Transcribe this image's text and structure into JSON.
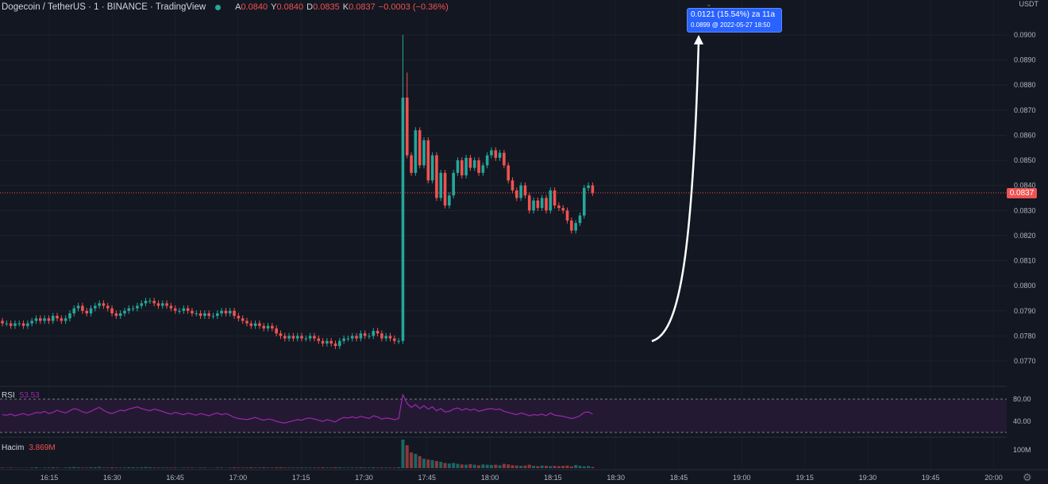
{
  "header": {
    "symbol": "Dogecoin / TetherUS · 1 · BINANCE · TradingView",
    "ohlc": [
      {
        "k": "A",
        "v": "0.0840"
      },
      {
        "k": "Y",
        "v": "0.0840"
      },
      {
        "k": "D",
        "v": "0.0835"
      },
      {
        "k": "K",
        "v": "0.0837"
      }
    ],
    "change": "−0.0003 (−0.36%)"
  },
  "price_axis": {
    "unit": "USDT",
    "current_price": "0.0837"
  },
  "measure_tooltip": {
    "line1": "0.0121 (15.54%) za 11a",
    "line2": "0.0899 @ 2022-05-27  18:50"
  },
  "rsi": {
    "label": "RSI",
    "value": "53.53",
    "levels": [
      "80.00",
      "40.00"
    ]
  },
  "volume": {
    "label": "Hacim",
    "value": "3.869M",
    "axis_label": "100M"
  },
  "colors": {
    "background": "#131722",
    "up": "#26a69a",
    "down": "#ef5350",
    "rsi": "#9c27b0",
    "rsi_band": "#2a1a3d"
  },
  "chart_data": {
    "type": "candlestick",
    "yticks": [
      "0.0770",
      "0.0780",
      "0.0790",
      "0.0800",
      "0.0810",
      "0.0820",
      "0.0830",
      "0.0840",
      "0.0850",
      "0.0860",
      "0.0870",
      "0.0880",
      "0.0890",
      "0.0900"
    ],
    "ylim": [
      0.0765,
      0.0903
    ],
    "xticks": [
      "16:15",
      "16:30",
      "16:45",
      "17:00",
      "17:15",
      "17:30",
      "17:45",
      "18:00",
      "18:15",
      "18:30",
      "18:45",
      "19:00",
      "19:15",
      "19:30",
      "19:45",
      "20:00"
    ],
    "series": [
      {
        "name": "candles",
        "values": [
          [
            0.0786,
            0.0785
          ],
          [
            0.0785,
            0.0785
          ],
          [
            0.0785,
            0.0784
          ],
          [
            0.0784,
            0.0785
          ],
          [
            0.0785,
            0.0785
          ],
          [
            0.0785,
            0.0784
          ],
          [
            0.0784,
            0.0785
          ],
          [
            0.0785,
            0.0786
          ],
          [
            0.0786,
            0.0787
          ],
          [
            0.0787,
            0.0786
          ],
          [
            0.0786,
            0.0787
          ],
          [
            0.0787,
            0.0786
          ],
          [
            0.0786,
            0.0788
          ],
          [
            0.0788,
            0.0787
          ],
          [
            0.0787,
            0.0786
          ],
          [
            0.0786,
            0.0787
          ],
          [
            0.0787,
            0.0789
          ],
          [
            0.0789,
            0.0791
          ],
          [
            0.0791,
            0.0792
          ],
          [
            0.0792,
            0.079
          ],
          [
            0.079,
            0.0789
          ],
          [
            0.0789,
            0.0791
          ],
          [
            0.0791,
            0.0792
          ],
          [
            0.0792,
            0.0793
          ],
          [
            0.0793,
            0.0792
          ],
          [
            0.0792,
            0.0791
          ],
          [
            0.0791,
            0.0789
          ],
          [
            0.0789,
            0.0788
          ],
          [
            0.0788,
            0.0789
          ],
          [
            0.0789,
            0.079
          ],
          [
            0.079,
            0.0791
          ],
          [
            0.0791,
            0.0791
          ],
          [
            0.0791,
            0.0792
          ],
          [
            0.0792,
            0.0793
          ],
          [
            0.0793,
            0.0794
          ],
          [
            0.0794,
            0.0794
          ],
          [
            0.0794,
            0.0793
          ],
          [
            0.0793,
            0.0792
          ],
          [
            0.0792,
            0.0793
          ],
          [
            0.0793,
            0.0792
          ],
          [
            0.0792,
            0.0791
          ],
          [
            0.0791,
            0.079
          ],
          [
            0.079,
            0.079
          ],
          [
            0.079,
            0.0791
          ],
          [
            0.0791,
            0.079
          ],
          [
            0.079,
            0.0789
          ],
          [
            0.0789,
            0.0789
          ],
          [
            0.0789,
            0.0788
          ],
          [
            0.0788,
            0.0789
          ],
          [
            0.0789,
            0.0788
          ],
          [
            0.0788,
            0.0788
          ],
          [
            0.0788,
            0.0789
          ],
          [
            0.0789,
            0.079
          ],
          [
            0.079,
            0.0789
          ],
          [
            0.0789,
            0.079
          ],
          [
            0.079,
            0.0788
          ],
          [
            0.0788,
            0.0787
          ],
          [
            0.0787,
            0.0786
          ],
          [
            0.0786,
            0.0785
          ],
          [
            0.0785,
            0.0784
          ],
          [
            0.0784,
            0.0785
          ],
          [
            0.0785,
            0.0784
          ],
          [
            0.0784,
            0.0783
          ],
          [
            0.0783,
            0.0784
          ],
          [
            0.0784,
            0.0783
          ],
          [
            0.0783,
            0.0781
          ],
          [
            0.0781,
            0.078
          ],
          [
            0.078,
            0.0779
          ],
          [
            0.0779,
            0.078
          ],
          [
            0.078,
            0.0779
          ],
          [
            0.0779,
            0.078
          ],
          [
            0.078,
            0.0779
          ],
          [
            0.0779,
            0.0779
          ],
          [
            0.0779,
            0.078
          ],
          [
            0.078,
            0.0779
          ],
          [
            0.0779,
            0.0778
          ],
          [
            0.0778,
            0.0777
          ],
          [
            0.0777,
            0.0778
          ],
          [
            0.0778,
            0.0777
          ],
          [
            0.0777,
            0.0776
          ],
          [
            0.0776,
            0.0778
          ],
          [
            0.0778,
            0.0779
          ],
          [
            0.0779,
            0.0779
          ],
          [
            0.0779,
            0.078
          ],
          [
            0.078,
            0.0779
          ],
          [
            0.0779,
            0.0781
          ],
          [
            0.0781,
            0.078
          ],
          [
            0.078,
            0.078
          ],
          [
            0.078,
            0.0782
          ],
          [
            0.0782,
            0.0781
          ],
          [
            0.0781,
            0.0779
          ],
          [
            0.0779,
            0.078
          ],
          [
            0.078,
            0.0779
          ],
          [
            0.0779,
            0.0778
          ],
          [
            0.0778,
            0.0778
          ],
          [
            0.0778,
            0.0875
          ],
          [
            0.0875,
            0.0852
          ],
          [
            0.0852,
            0.0845
          ],
          [
            0.0845,
            0.0862
          ],
          [
            0.0862,
            0.0848
          ],
          [
            0.0848,
            0.0858
          ],
          [
            0.0858,
            0.0842
          ],
          [
            0.0842,
            0.0852
          ],
          [
            0.0852,
            0.0835
          ],
          [
            0.0835,
            0.0845
          ],
          [
            0.0845,
            0.0832
          ],
          [
            0.0832,
            0.0836
          ],
          [
            0.0836,
            0.0845
          ],
          [
            0.0845,
            0.085
          ],
          [
            0.085,
            0.0844
          ],
          [
            0.0844,
            0.0851
          ],
          [
            0.0851,
            0.0847
          ],
          [
            0.0847,
            0.085
          ],
          [
            0.085,
            0.0845
          ],
          [
            0.0845,
            0.0848
          ],
          [
            0.0848,
            0.0852
          ],
          [
            0.0852,
            0.0854
          ],
          [
            0.0854,
            0.0851
          ],
          [
            0.0851,
            0.0853
          ],
          [
            0.0853,
            0.0848
          ],
          [
            0.0848,
            0.0842
          ],
          [
            0.0842,
            0.0838
          ],
          [
            0.0838,
            0.0835
          ],
          [
            0.0835,
            0.084
          ],
          [
            0.084,
            0.0836
          ],
          [
            0.0836,
            0.083
          ],
          [
            0.083,
            0.0834
          ],
          [
            0.0834,
            0.0831
          ],
          [
            0.0831,
            0.0835
          ],
          [
            0.0835,
            0.083
          ],
          [
            0.083,
            0.0838
          ],
          [
            0.0838,
            0.0832
          ],
          [
            0.0832,
            0.0831
          ],
          [
            0.0831,
            0.083
          ],
          [
            0.083,
            0.0826
          ],
          [
            0.0826,
            0.0822
          ],
          [
            0.0822,
            0.0825
          ],
          [
            0.0825,
            0.0828
          ],
          [
            0.0828,
            0.0839
          ],
          [
            0.0839,
            0.084
          ],
          [
            0.084,
            0.0837
          ]
        ]
      }
    ],
    "rsi_values": [
      52,
      51,
      53,
      50,
      52,
      54,
      51,
      53,
      56,
      55,
      58,
      54,
      56,
      60,
      57,
      55,
      59,
      63,
      61,
      57,
      55,
      58,
      62,
      65,
      60,
      56,
      54,
      57,
      60,
      59,
      62,
      64,
      66,
      63,
      61,
      59,
      62,
      60,
      58,
      55,
      53,
      56,
      54,
      52,
      55,
      53,
      51,
      54,
      52,
      50,
      53,
      55,
      52,
      54,
      51,
      47,
      45,
      44,
      43,
      45,
      47,
      44,
      42,
      44,
      43,
      40,
      38,
      37,
      39,
      41,
      43,
      42,
      45,
      46,
      44,
      42,
      40,
      43,
      41,
      39,
      44,
      47,
      46,
      48,
      46,
      49,
      47,
      45,
      50,
      48,
      44,
      46,
      45,
      43,
      45,
      88,
      72,
      65,
      70,
      63,
      68,
      62,
      66,
      59,
      63,
      57,
      58,
      62,
      64,
      60,
      63,
      60,
      62,
      58,
      60,
      62,
      63,
      61,
      62,
      58,
      56,
      54,
      52,
      55,
      53,
      50,
      52,
      51,
      53,
      50,
      55,
      51,
      50,
      49,
      47,
      45,
      47,
      50,
      56,
      57,
      53
    ],
    "volume_values": [
      2,
      1,
      2,
      1,
      1,
      1,
      1,
      2,
      3,
      1,
      2,
      2,
      3,
      2,
      1,
      2,
      3,
      4,
      3,
      2,
      2,
      3,
      3,
      4,
      2,
      2,
      3,
      2,
      2,
      2,
      3,
      3,
      2,
      3,
      4,
      3,
      2,
      2,
      2,
      2,
      2,
      2,
      1,
      2,
      2,
      2,
      1,
      2,
      2,
      1,
      1,
      2,
      2,
      1,
      2,
      3,
      2,
      2,
      2,
      3,
      2,
      2,
      3,
      2,
      2,
      3,
      3,
      2,
      2,
      2,
      2,
      2,
      2,
      2,
      2,
      2,
      3,
      2,
      2,
      3,
      3,
      2,
      2,
      2,
      2,
      3,
      2,
      2,
      3,
      2,
      2,
      2,
      2,
      2,
      3,
      100,
      80,
      55,
      50,
      42,
      33,
      30,
      28,
      25,
      22,
      18,
      16,
      18,
      15,
      13,
      12,
      14,
      12,
      10,
      13,
      12,
      11,
      12,
      10,
      15,
      13,
      10,
      9,
      8,
      9,
      12,
      8,
      7,
      9,
      8,
      7,
      8,
      7,
      8,
      9,
      6,
      11,
      8,
      6,
      7,
      4
    ]
  }
}
